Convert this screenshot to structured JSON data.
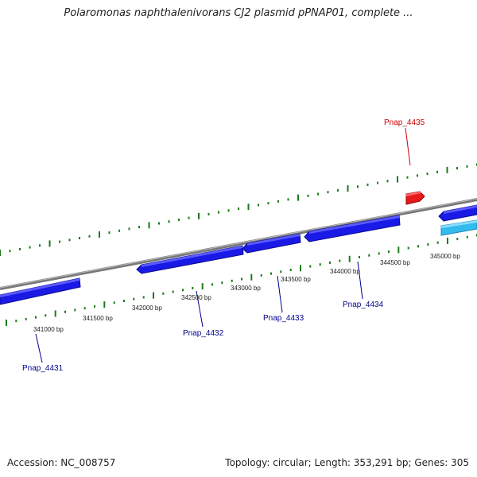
{
  "title": "Polaromonas naphthalenivorans CJ2 plasmid pPNAP01, complete ...",
  "footer": {
    "accession": "Accession: NC_008757",
    "summary": "Topology: circular; Length: 353,291 bp; Genes: 305"
  },
  "colors": {
    "backbone": "#808080",
    "tick": "#1a7a1a",
    "gene": "#1a1ae6",
    "gene_light": "#33bbee",
    "gene_red": "#e61a1a",
    "label_blue": "#00008b",
    "label_red": "#cc0000"
  },
  "scale": {
    "labels": [
      "341000 bp",
      "341500 bp",
      "342000 bp",
      "342500 bp",
      "343000 bp",
      "343500 bp",
      "344000 bp",
      "344500 bp",
      "345000 bp"
    ]
  },
  "genes": [
    {
      "label": "Pnap_4431"
    },
    {
      "label": "Pnap_4432"
    },
    {
      "label": "Pnap_4433"
    },
    {
      "label": "Pnap_4434"
    },
    {
      "label": "Pnap_4435"
    }
  ]
}
